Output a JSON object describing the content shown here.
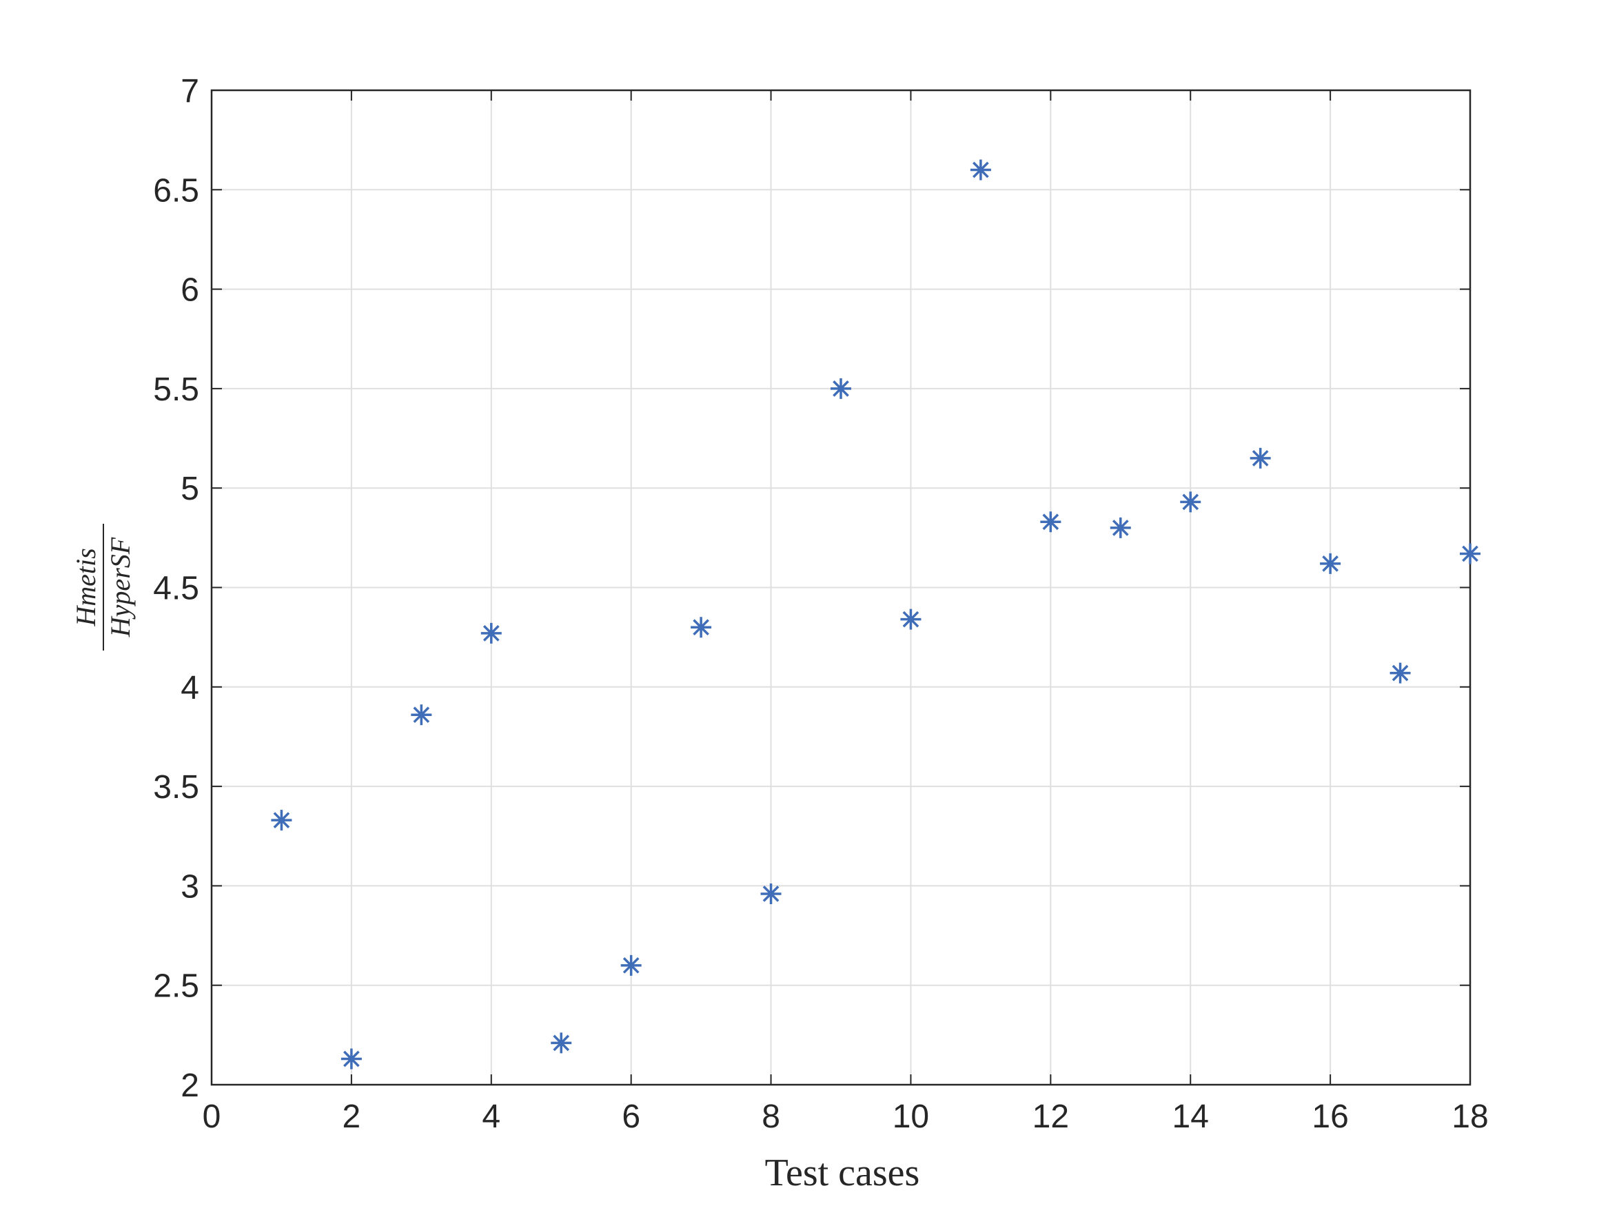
{
  "chart_data": {
    "type": "scatter",
    "xlabel": "Test cases",
    "ylabel": [
      "Hmetis",
      "HyperSF"
    ],
    "x": [
      1,
      2,
      3,
      4,
      5,
      6,
      7,
      8,
      9,
      10,
      11,
      12,
      13,
      14,
      15,
      16,
      17,
      18
    ],
    "series": [
      {
        "color": "#3f6db8",
        "values": [
          3.33,
          2.13,
          3.86,
          4.27,
          2.21,
          2.6,
          4.3,
          2.96,
          5.5,
          4.34,
          6.6,
          4.83,
          4.8,
          4.93,
          5.15,
          4.62,
          4.07,
          4.67
        ]
      }
    ],
    "xlim": [
      0,
      18
    ],
    "xticks": [
      0,
      2,
      4,
      6,
      8,
      10,
      12,
      14,
      16,
      18
    ],
    "ylim": [
      2,
      7
    ],
    "yticks": [
      2,
      2.5,
      3,
      3.5,
      4,
      4.5,
      5,
      5.5,
      6,
      6.5,
      7
    ],
    "grid": true
  }
}
